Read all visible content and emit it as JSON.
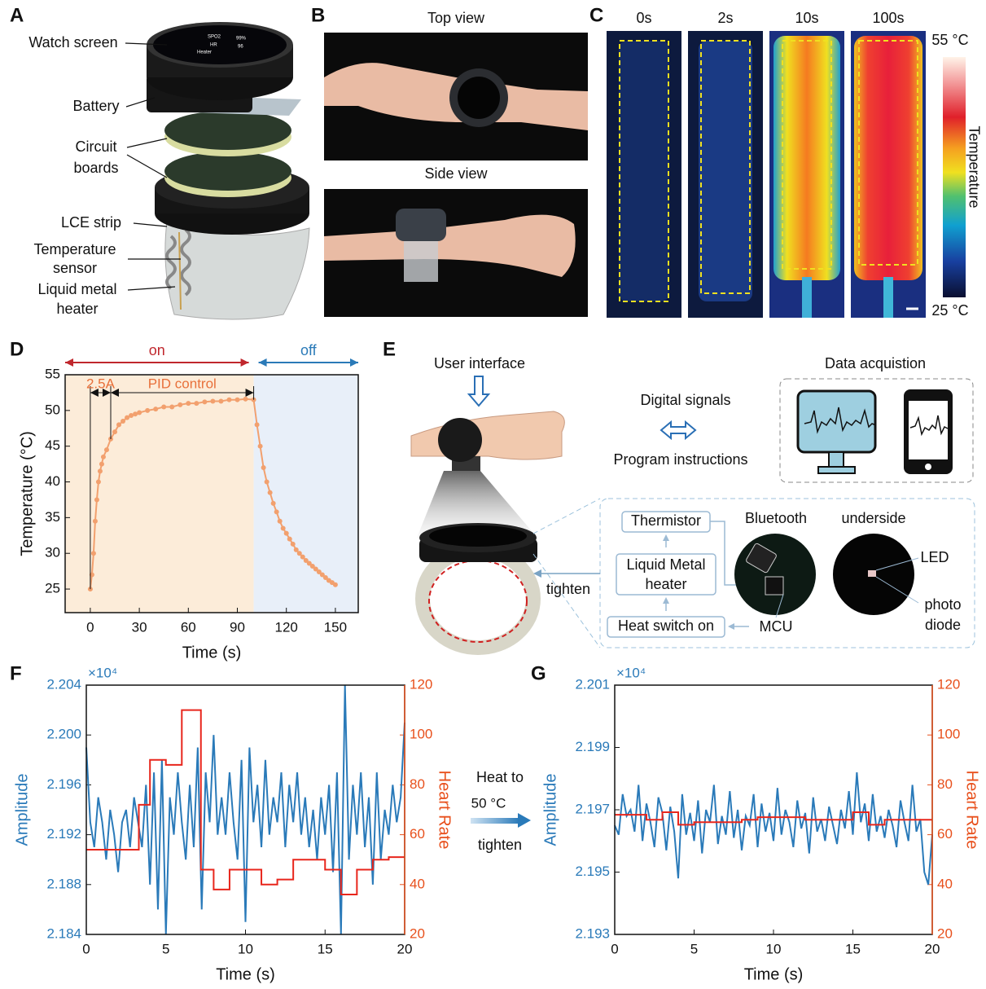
{
  "panel_labels": [
    "A",
    "B",
    "C",
    "D",
    "E",
    "F",
    "G"
  ],
  "panel_a": {
    "labels": [
      [
        "Watch screen"
      ],
      [
        "Battery"
      ],
      [
        "Circuit",
        "boards"
      ],
      [
        "LCE strip"
      ],
      [
        "Temperature",
        "sensor"
      ],
      [
        "Liquid metal",
        "heater"
      ]
    ],
    "screen": [
      "SPO2",
      "99%",
      "HR",
      "96",
      "Heater"
    ]
  },
  "panel_b": {
    "views": [
      "Top view",
      "Side view"
    ]
  },
  "panel_c": {
    "times": [
      "0s",
      "2s",
      "10s",
      "100s"
    ],
    "colorbar": {
      "max": "55 °C",
      "min": "25 °C",
      "label": "Temperature"
    }
  },
  "panel_e": {
    "user_interface": "User interface",
    "digital_signals": "Digital signals",
    "program_instructions": "Program instructions",
    "data_acquisition": "Data acquistion",
    "thermistor": "Thermistor",
    "heater": [
      "Liquid Metal",
      "heater"
    ],
    "heat_switch": "Heat switch on",
    "bluetooth": "Bluetooth",
    "mcu": "MCU",
    "underside": "underside",
    "led": "LED",
    "photodiode": [
      "photo",
      "diode"
    ],
    "tighten": "tighten"
  },
  "transition": [
    "Heat to",
    "50 °C",
    "tighten"
  ],
  "chart_data": [
    {
      "type": "line",
      "xlabel": "Time (s)",
      "ylabel": "Temperature (°C)",
      "markers": true,
      "xlim": [
        -15.4,
        164
      ],
      "xticks": [
        0,
        30,
        60,
        90,
        120,
        150
      ],
      "ylim": [
        21.7,
        55
      ],
      "yticks": [
        25,
        30,
        35,
        40,
        45,
        50,
        55
      ],
      "regions": [
        {
          "label": "on",
          "color": "#fcecd9",
          "label_color": "#c0272d",
          "xrange": [
            -15.4,
            100
          ]
        },
        {
          "label": "off",
          "color": "#e8eff9",
          "label_color": "#2a7ab8",
          "xrange": [
            100,
            164
          ]
        }
      ],
      "annotations": [
        {
          "text": "2.5A",
          "xrange": [
            0,
            12.5
          ]
        },
        {
          "text": "PID control",
          "xrange": [
            12.5,
            100
          ]
        }
      ],
      "annotation_color": "#e8703a",
      "series": [
        {
          "color": "#f2a06e",
          "x": [
            0,
            1,
            2,
            3,
            4,
            5,
            6,
            7,
            8,
            10,
            12.5,
            15,
            17.5,
            20,
            22.5,
            25,
            27.5,
            30,
            35,
            40,
            45,
            50,
            55,
            60,
            65,
            70,
            75,
            80,
            85,
            90,
            95,
            100,
            102,
            104,
            106,
            108,
            110,
            112,
            114,
            116,
            118,
            120,
            122,
            124,
            126,
            128,
            130,
            132,
            134,
            136,
            138,
            140,
            142,
            144,
            146,
            148,
            150
          ],
          "values": [
            25,
            27,
            30,
            34.5,
            37.5,
            40,
            41.5,
            42.5,
            43.5,
            44.5,
            46,
            47,
            48,
            48.5,
            49,
            49.3,
            49.5,
            49.7,
            50,
            50.2,
            50.5,
            50.5,
            50.8,
            51,
            51,
            51.2,
            51.3,
            51.3,
            51.5,
            51.5,
            51.6,
            51.5,
            48,
            45,
            42,
            40,
            38.5,
            37,
            35.8,
            34.5,
            33.5,
            32.8,
            32,
            31.3,
            30.5,
            30,
            29.5,
            29,
            28.6,
            28.2,
            27.8,
            27.4,
            27,
            26.6,
            26.2,
            25.9,
            25.6
          ]
        }
      ]
    },
    {
      "type": "line",
      "xlabel": "Time (s)",
      "ylabel": "Amplitude",
      "y2label": "Heart Rate",
      "multiplier": "×10⁴",
      "markers": false,
      "ycolor": "#2a7ab9",
      "y2color": "#e8501c",
      "xlim": [
        0,
        20
      ],
      "xticks": [
        0,
        5,
        10,
        15,
        20
      ],
      "ylim": [
        2.184,
        2.204
      ],
      "yticks": [
        2.184,
        2.188,
        2.192,
        2.196,
        {
          "value": 2.2,
          "label": "2.200"
        },
        2.204
      ],
      "y2lim": [
        20,
        120
      ],
      "y2ticks": [
        20,
        40,
        60,
        80,
        100,
        120
      ],
      "series": [
        {
          "color": "#2a7ab9",
          "x": [
            0,
            0.25,
            0.5,
            0.75,
            1,
            1.25,
            1.5,
            1.75,
            2,
            2.25,
            2.5,
            2.75,
            3,
            3.25,
            3.5,
            3.75,
            4,
            4.25,
            4.5,
            4.75,
            5,
            5.25,
            5.5,
            5.75,
            6,
            6.25,
            6.5,
            6.75,
            7,
            7.25,
            7.5,
            7.75,
            8,
            8.25,
            8.5,
            8.75,
            9,
            9.25,
            9.5,
            9.75,
            10,
            10.25,
            10.5,
            10.75,
            11,
            11.25,
            11.5,
            11.75,
            12,
            12.25,
            12.5,
            12.75,
            13,
            13.25,
            13.5,
            13.75,
            14,
            14.25,
            14.5,
            14.75,
            15,
            15.25,
            15.5,
            15.75,
            16,
            16.25,
            16.5,
            16.75,
            17,
            17.25,
            17.5,
            17.75,
            18,
            18.25,
            18.5,
            18.75,
            19,
            19.25,
            19.5,
            19.75,
            20
          ],
          "values": [
            2.199,
            2.193,
            2.191,
            2.195,
            2.193,
            2.19,
            2.194,
            2.192,
            2.189,
            2.193,
            2.194,
            2.191,
            2.195,
            2.193,
            2.191,
            2.196,
            2.188,
            2.197,
            2.186,
            2.198,
            2.184,
            2.195,
            2.192,
            2.197,
            2.193,
            2.19,
            2.196,
            2.191,
            2.199,
            2.186,
            2.197,
            2.193,
            2.2,
            2.192,
            2.195,
            2.192,
            2.197,
            2.193,
            2.19,
            2.198,
            2.185,
            2.199,
            2.193,
            2.196,
            2.191,
            2.198,
            2.192,
            2.195,
            2.193,
            2.197,
            2.191,
            2.196,
            2.193,
            2.197,
            2.192,
            2.195,
            2.191,
            2.194,
            2.19,
            2.195,
            2.192,
            2.196,
            2.189,
            2.197,
            2.184,
            2.204,
            2.19,
            2.196,
            2.192,
            2.197,
            2.191,
            2.195,
            2.188,
            2.197,
            2.19,
            2.194,
            2.192,
            2.196,
            2.193,
            2.195,
            2.201
          ]
        },
        {
          "color": "#e8261c",
          "axis": "y2",
          "step": true,
          "x": [
            0,
            3.3,
            4,
            5,
            6,
            7.2,
            8,
            9,
            11,
            12,
            13,
            15,
            16,
            17,
            18,
            19,
            20
          ],
          "values": [
            54,
            72,
            90,
            88,
            110,
            46,
            38,
            46,
            40,
            42,
            50,
            46,
            36,
            46,
            50,
            51,
            51
          ]
        }
      ]
    },
    {
      "type": "line",
      "xlabel": "Time (s)",
      "ylabel": "Amplitude",
      "y2label": "Heart Rate",
      "multiplier": "×10⁴",
      "markers": false,
      "ycolor": "#2a7ab9",
      "y2color": "#e8501c",
      "xlim": [
        0,
        20
      ],
      "xticks": [
        0,
        5,
        10,
        15,
        20
      ],
      "ylim": [
        2.193,
        2.201
      ],
      "yticks": [
        2.193,
        2.195,
        2.197,
        2.199,
        2.201
      ],
      "y2lim": [
        20,
        120
      ],
      "y2ticks": [
        20,
        40,
        60,
        80,
        100,
        120
      ],
      "series": [
        {
          "color": "#2a7ab9",
          "x": [
            0,
            0.25,
            0.5,
            0.75,
            1,
            1.25,
            1.5,
            1.75,
            2,
            2.25,
            2.5,
            2.75,
            3,
            3.25,
            3.5,
            3.75,
            4,
            4.25,
            4.5,
            4.75,
            5,
            5.25,
            5.5,
            5.75,
            6,
            6.25,
            6.5,
            6.75,
            7,
            7.25,
            7.5,
            7.75,
            8,
            8.25,
            8.5,
            8.75,
            9,
            9.25,
            9.5,
            9.75,
            10,
            10.25,
            10.5,
            10.75,
            11,
            11.25,
            11.5,
            11.75,
            12,
            12.25,
            12.5,
            12.75,
            13,
            13.25,
            13.5,
            13.75,
            14,
            14.25,
            14.5,
            14.75,
            15,
            15.25,
            15.5,
            15.75,
            16,
            16.25,
            16.5,
            16.75,
            17,
            17.25,
            17.5,
            17.75,
            18,
            18.25,
            18.5,
            18.75,
            19,
            19.25,
            19.5,
            19.75,
            20
          ],
          "values": [
            2.1965,
            2.1962,
            2.1975,
            2.1968,
            2.197,
            2.1963,
            2.1978,
            2.196,
            2.1972,
            2.1966,
            2.1958,
            2.1974,
            2.1969,
            2.1957,
            2.1971,
            2.1963,
            2.1948,
            2.1975,
            2.1962,
            2.1969,
            2.196,
            2.1973,
            2.1956,
            2.197,
            2.1966,
            2.1978,
            2.1959,
            2.1968,
            2.1962,
            2.1976,
            2.1961,
            2.197,
            2.1957,
            2.1968,
            2.1965,
            2.1975,
            2.1958,
            2.1972,
            2.1963,
            2.1969,
            2.196,
            2.1977,
            2.1962,
            2.197,
            2.1966,
            2.1958,
            2.1973,
            2.1964,
            2.1969,
            2.1956,
            2.1974,
            2.1963,
            2.1967,
            2.196,
            2.1971,
            2.1965,
            2.1959,
            2.197,
            2.1964,
            2.1976,
            2.1962,
            2.1982,
            2.1966,
            2.1972,
            2.196,
            2.1975,
            2.1963,
            2.1968,
            2.1961,
            2.197,
            2.1965,
            2.1958,
            2.1973,
            2.1966,
            2.196,
            2.1978,
            2.1963,
            2.1967,
            2.195,
            2.1946,
            2.1962
          ]
        },
        {
          "color": "#e8261c",
          "axis": "y2",
          "step": true,
          "x": [
            0,
            2,
            3,
            4,
            5,
            8,
            9,
            12,
            15,
            16,
            17,
            20
          ],
          "values": [
            68,
            66,
            69,
            64,
            65,
            66,
            67,
            66,
            69,
            64,
            66,
            66
          ]
        }
      ]
    }
  ]
}
